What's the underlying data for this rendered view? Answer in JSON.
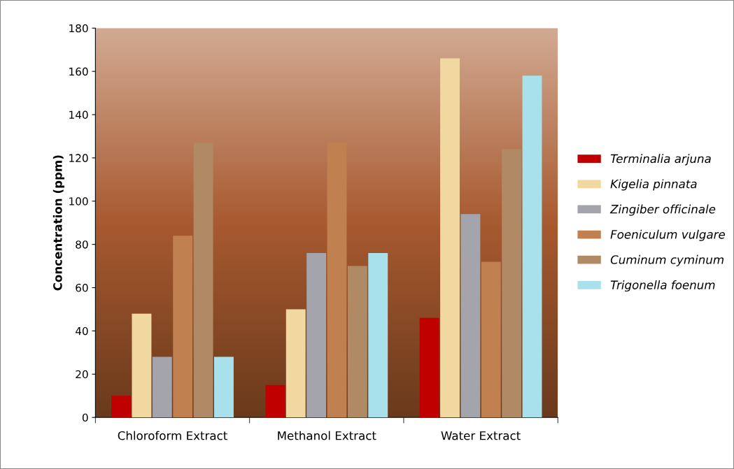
{
  "chart_data": {
    "type": "bar",
    "ylabel": "Concentration (ppm)",
    "categories": [
      "Chloroform Extract",
      "Methanol Extract",
      "Water Extract"
    ],
    "series": [
      {
        "name": "Terminalia arjuna",
        "color": "#c00000",
        "values": [
          10,
          15,
          46
        ]
      },
      {
        "name": "Kigelia pinnata",
        "color": "#f0d8a0",
        "values": [
          48,
          50,
          166
        ]
      },
      {
        "name": "Zingiber officinale",
        "color": "#a4a4ac",
        "values": [
          28,
          76,
          94
        ]
      },
      {
        "name": "Foeniculum vulgare",
        "color": "#c08050",
        "values": [
          84,
          127,
          72
        ]
      },
      {
        "name": "Cuminum cyminum",
        "color": "#b08a64",
        "values": [
          127,
          70,
          124
        ]
      },
      {
        "name": "Trigonella foenum",
        "color": "#a8e0ec",
        "values": [
          28,
          76,
          158
        ]
      }
    ],
    "ylim": [
      0,
      180
    ],
    "yticks": [
      0,
      20,
      40,
      60,
      80,
      100,
      120,
      140,
      160,
      180
    ],
    "legend": "right",
    "grid": false
  }
}
